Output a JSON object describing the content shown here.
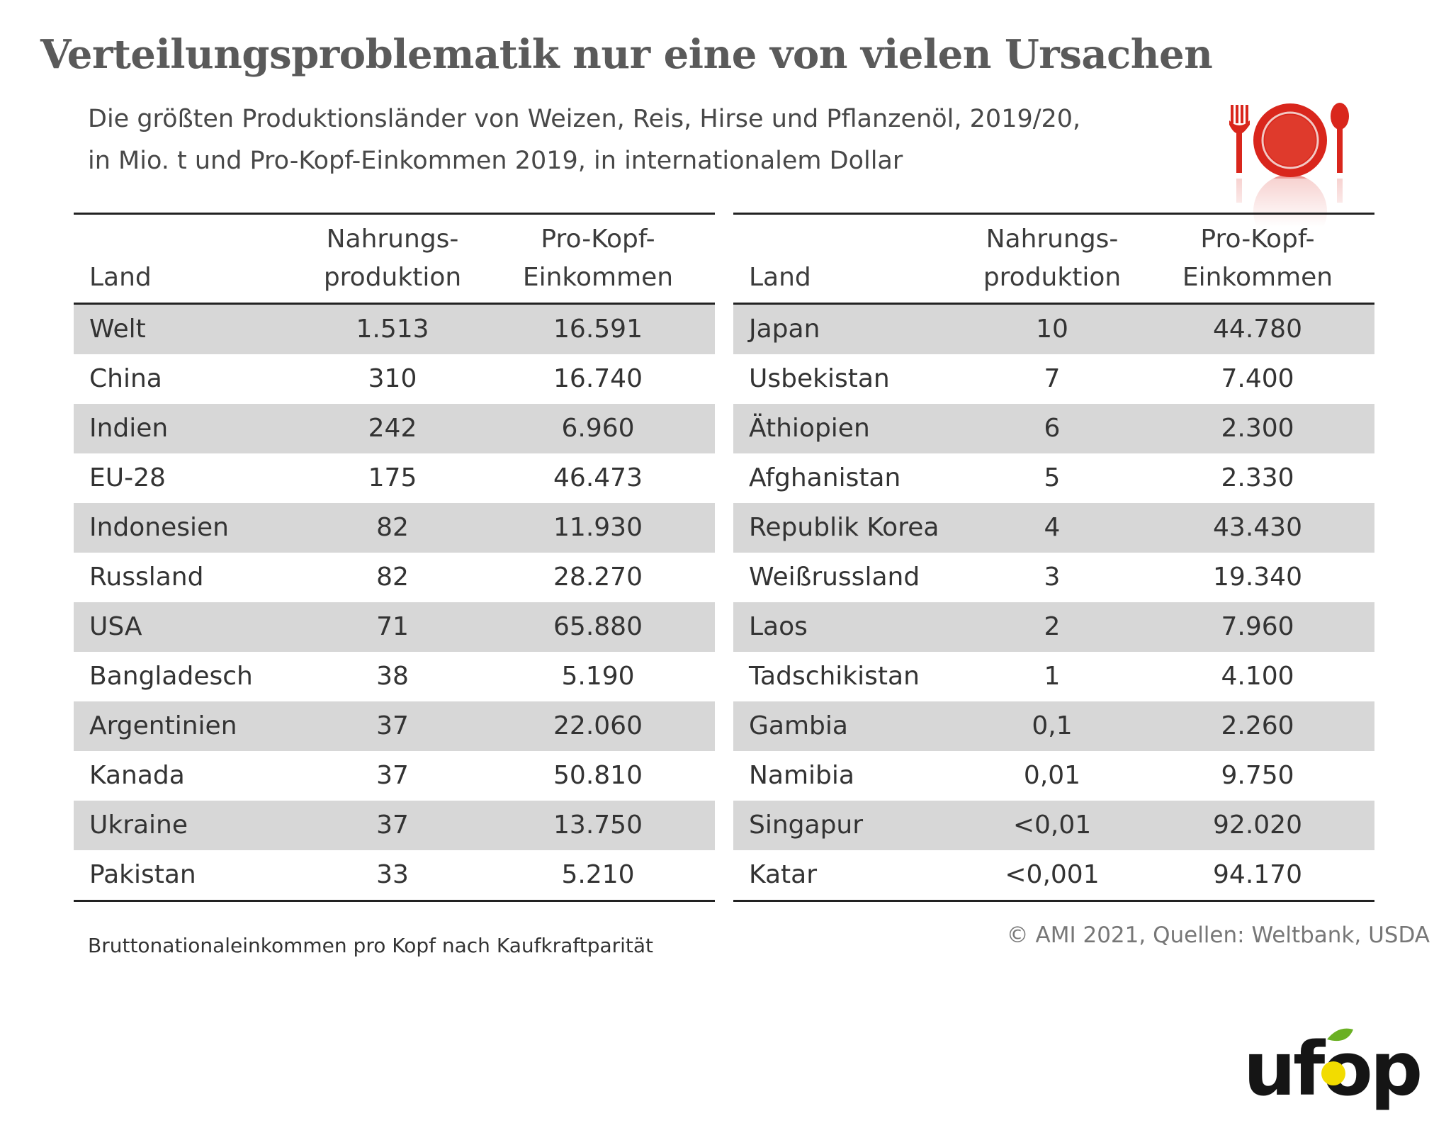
{
  "title": "Verteilungsproblematik nur eine von vielen Ursachen",
  "subtitle_line1": "Die größten Produktionsländer von Weizen, Reis, Hirse und Pflanzenöl, 2019/20,",
  "subtitle_line2": "in Mio. t und Pro-Kopf-Einkommen 2019, in internationalem Dollar",
  "icon": "plate-with-fork-and-spoon-icon",
  "headers": {
    "land": "Land",
    "prod_line1": "Nahrungs-",
    "prod_line2": "produktion",
    "ink_line1": "Pro-Kopf-",
    "ink_line2": "Einkommen"
  },
  "colors": {
    "shade": "#d7d7d7",
    "logo_green": "#6ab023",
    "logo_yellow": "#f2dc00",
    "icon_red": "#d9261c"
  },
  "chart_data": {
    "type": "table",
    "columns": [
      "Land",
      "Nahrungsproduktion",
      "Pro-Kopf-Einkommen"
    ],
    "left_rows": [
      {
        "land": "Welt",
        "prod": "1.513",
        "ink": "16.591"
      },
      {
        "land": "China",
        "prod": "310",
        "ink": "16.740"
      },
      {
        "land": "Indien",
        "prod": "242",
        "ink": "6.960"
      },
      {
        "land": "EU-28",
        "prod": "175",
        "ink": "46.473"
      },
      {
        "land": "Indonesien",
        "prod": "82",
        "ink": "11.930"
      },
      {
        "land": "Russland",
        "prod": "82",
        "ink": "28.270"
      },
      {
        "land": "USA",
        "prod": "71",
        "ink": "65.880"
      },
      {
        "land": "Bangladesch",
        "prod": "38",
        "ink": "5.190"
      },
      {
        "land": "Argentinien",
        "prod": "37",
        "ink": "22.060"
      },
      {
        "land": "Kanada",
        "prod": "37",
        "ink": "50.810"
      },
      {
        "land": "Ukraine",
        "prod": "37",
        "ink": "13.750"
      },
      {
        "land": "Pakistan",
        "prod": "33",
        "ink": "5.210"
      }
    ],
    "right_rows": [
      {
        "land": "Japan",
        "prod": "10",
        "ink": "44.780"
      },
      {
        "land": "Usbekistan",
        "prod": "7",
        "ink": "7.400"
      },
      {
        "land": "Äthiopien",
        "prod": "6",
        "ink": "2.300"
      },
      {
        "land": "Afghanistan",
        "prod": "5",
        "ink": "2.330"
      },
      {
        "land": "Republik Korea",
        "prod": "4",
        "ink": "43.430"
      },
      {
        "land": "Weißrussland",
        "prod": "3",
        "ink": "19.340"
      },
      {
        "land": "Laos",
        "prod": "2",
        "ink": "7.960"
      },
      {
        "land": "Tadschikistan",
        "prod": "1",
        "ink": "4.100"
      },
      {
        "land": "Gambia",
        "prod": "0,1",
        "ink": "2.260"
      },
      {
        "land": "Namibia",
        "prod": "0,01",
        "ink": "9.750"
      },
      {
        "land": "Singapur",
        "prod": "<0,01",
        "ink": "92.020"
      },
      {
        "land": "Katar",
        "prod": "<0,001",
        "ink": "94.170"
      }
    ]
  },
  "note": "Bruttonationaleinkommen pro Kopf nach Kaufkraftparität",
  "source": "© AMI 2021, Quellen: Weltbank, USDA",
  "logo_text": "ufop"
}
